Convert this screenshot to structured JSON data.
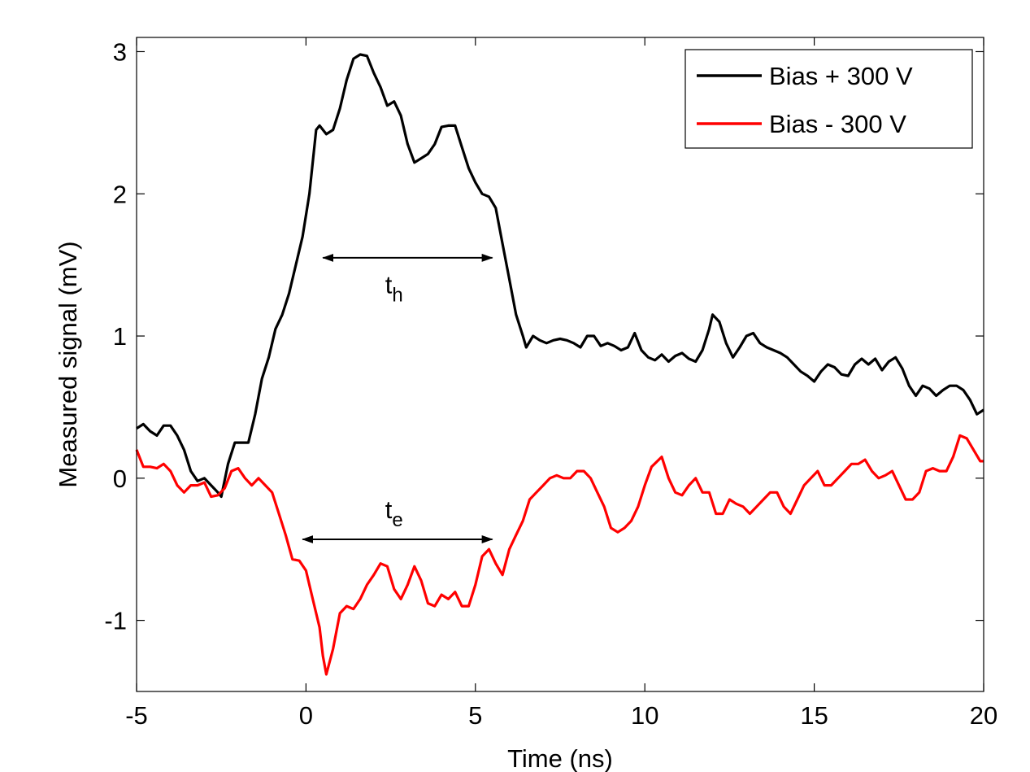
{
  "chart_data": {
    "type": "line",
    "xlabel": "Time (ns)",
    "ylabel": "Measured signal (mV)",
    "xlim": [
      -5,
      20
    ],
    "ylim": [
      -1.5,
      3.1
    ],
    "xticks": [
      -5,
      0,
      5,
      10,
      15,
      20
    ],
    "yticks": [
      -1,
      0,
      1,
      2,
      3
    ],
    "xtick_labels": [
      "-5",
      "0",
      "5",
      "10",
      "15",
      "20"
    ],
    "ytick_labels": [
      "-1",
      "0",
      "1",
      "2",
      "3"
    ],
    "grid": false,
    "legend": {
      "position": "top-right"
    },
    "series": [
      {
        "name": "Bias + 300 V",
        "color": "#000000",
        "points": [
          [
            -5.0,
            0.35
          ],
          [
            -4.8,
            0.38
          ],
          [
            -4.6,
            0.33
          ],
          [
            -4.4,
            0.3
          ],
          [
            -4.2,
            0.37
          ],
          [
            -4.0,
            0.37
          ],
          [
            -3.8,
            0.3
          ],
          [
            -3.6,
            0.2
          ],
          [
            -3.4,
            0.05
          ],
          [
            -3.2,
            -0.02
          ],
          [
            -3.0,
            0.0
          ],
          [
            -2.8,
            -0.05
          ],
          [
            -2.6,
            -0.1
          ],
          [
            -2.5,
            -0.13
          ],
          [
            -2.3,
            0.1
          ],
          [
            -2.1,
            0.25
          ],
          [
            -1.9,
            0.25
          ],
          [
            -1.7,
            0.25
          ],
          [
            -1.5,
            0.45
          ],
          [
            -1.3,
            0.7
          ],
          [
            -1.1,
            0.85
          ],
          [
            -0.9,
            1.05
          ],
          [
            -0.7,
            1.15
          ],
          [
            -0.5,
            1.3
          ],
          [
            -0.3,
            1.5
          ],
          [
            -0.1,
            1.7
          ],
          [
            0.1,
            2.0
          ],
          [
            0.3,
            2.45
          ],
          [
            0.4,
            2.48
          ],
          [
            0.6,
            2.42
          ],
          [
            0.8,
            2.45
          ],
          [
            1.0,
            2.6
          ],
          [
            1.2,
            2.8
          ],
          [
            1.4,
            2.95
          ],
          [
            1.6,
            2.98
          ],
          [
            1.8,
            2.97
          ],
          [
            2.0,
            2.85
          ],
          [
            2.2,
            2.75
          ],
          [
            2.4,
            2.62
          ],
          [
            2.6,
            2.65
          ],
          [
            2.8,
            2.55
          ],
          [
            3.0,
            2.35
          ],
          [
            3.2,
            2.22
          ],
          [
            3.4,
            2.25
          ],
          [
            3.6,
            2.28
          ],
          [
            3.8,
            2.35
          ],
          [
            4.0,
            2.47
          ],
          [
            4.2,
            2.48
          ],
          [
            4.4,
            2.48
          ],
          [
            4.6,
            2.33
          ],
          [
            4.8,
            2.18
          ],
          [
            5.0,
            2.08
          ],
          [
            5.2,
            2.0
          ],
          [
            5.4,
            1.98
          ],
          [
            5.6,
            1.9
          ],
          [
            5.8,
            1.65
          ],
          [
            6.0,
            1.4
          ],
          [
            6.2,
            1.15
          ],
          [
            6.4,
            1.0
          ],
          [
            6.5,
            0.92
          ],
          [
            6.7,
            1.0
          ],
          [
            6.9,
            0.97
          ],
          [
            7.1,
            0.95
          ],
          [
            7.3,
            0.97
          ],
          [
            7.5,
            0.98
          ],
          [
            7.7,
            0.97
          ],
          [
            7.9,
            0.95
          ],
          [
            8.1,
            0.92
          ],
          [
            8.3,
            1.0
          ],
          [
            8.5,
            1.0
          ],
          [
            8.7,
            0.93
          ],
          [
            8.9,
            0.95
          ],
          [
            9.1,
            0.93
          ],
          [
            9.3,
            0.9
          ],
          [
            9.5,
            0.92
          ],
          [
            9.7,
            1.02
          ],
          [
            9.9,
            0.9
          ],
          [
            10.1,
            0.85
          ],
          [
            10.3,
            0.83
          ],
          [
            10.5,
            0.87
          ],
          [
            10.7,
            0.82
          ],
          [
            10.9,
            0.86
          ],
          [
            11.1,
            0.88
          ],
          [
            11.3,
            0.84
          ],
          [
            11.5,
            0.82
          ],
          [
            11.7,
            0.9
          ],
          [
            11.9,
            1.05
          ],
          [
            12.0,
            1.15
          ],
          [
            12.2,
            1.1
          ],
          [
            12.4,
            0.95
          ],
          [
            12.6,
            0.85
          ],
          [
            12.8,
            0.92
          ],
          [
            13.0,
            1.0
          ],
          [
            13.2,
            1.02
          ],
          [
            13.4,
            0.95
          ],
          [
            13.6,
            0.92
          ],
          [
            13.8,
            0.9
          ],
          [
            14.0,
            0.88
          ],
          [
            14.2,
            0.85
          ],
          [
            14.4,
            0.8
          ],
          [
            14.6,
            0.75
          ],
          [
            14.8,
            0.72
          ],
          [
            15.0,
            0.68
          ],
          [
            15.2,
            0.75
          ],
          [
            15.4,
            0.8
          ],
          [
            15.6,
            0.78
          ],
          [
            15.8,
            0.73
          ],
          [
            16.0,
            0.72
          ],
          [
            16.2,
            0.8
          ],
          [
            16.4,
            0.84
          ],
          [
            16.6,
            0.8
          ],
          [
            16.8,
            0.84
          ],
          [
            17.0,
            0.76
          ],
          [
            17.2,
            0.82
          ],
          [
            17.4,
            0.85
          ],
          [
            17.6,
            0.77
          ],
          [
            17.8,
            0.65
          ],
          [
            18.0,
            0.58
          ],
          [
            18.2,
            0.65
          ],
          [
            18.4,
            0.63
          ],
          [
            18.6,
            0.58
          ],
          [
            18.8,
            0.62
          ],
          [
            19.0,
            0.65
          ],
          [
            19.2,
            0.65
          ],
          [
            19.4,
            0.62
          ],
          [
            19.6,
            0.55
          ],
          [
            19.8,
            0.45
          ],
          [
            20.0,
            0.48
          ]
        ]
      },
      {
        "name": "Bias - 300 V",
        "color": "#ff0000",
        "points": [
          [
            -5.0,
            0.2
          ],
          [
            -4.8,
            0.08
          ],
          [
            -4.6,
            0.08
          ],
          [
            -4.4,
            0.07
          ],
          [
            -4.2,
            0.1
          ],
          [
            -4.0,
            0.05
          ],
          [
            -3.8,
            -0.05
          ],
          [
            -3.6,
            -0.1
          ],
          [
            -3.4,
            -0.05
          ],
          [
            -3.2,
            -0.05
          ],
          [
            -3.0,
            -0.03
          ],
          [
            -2.8,
            -0.13
          ],
          [
            -2.6,
            -0.12
          ],
          [
            -2.4,
            -0.07
          ],
          [
            -2.2,
            0.05
          ],
          [
            -2.0,
            0.07
          ],
          [
            -1.8,
            0.0
          ],
          [
            -1.6,
            -0.05
          ],
          [
            -1.4,
            0.0
          ],
          [
            -1.2,
            -0.05
          ],
          [
            -1.0,
            -0.1
          ],
          [
            -0.8,
            -0.25
          ],
          [
            -0.6,
            -0.4
          ],
          [
            -0.4,
            -0.57
          ],
          [
            -0.2,
            -0.58
          ],
          [
            0.0,
            -0.65
          ],
          [
            0.2,
            -0.85
          ],
          [
            0.4,
            -1.05
          ],
          [
            0.5,
            -1.25
          ],
          [
            0.6,
            -1.38
          ],
          [
            0.8,
            -1.2
          ],
          [
            1.0,
            -0.95
          ],
          [
            1.2,
            -0.9
          ],
          [
            1.4,
            -0.92
          ],
          [
            1.6,
            -0.85
          ],
          [
            1.8,
            -0.75
          ],
          [
            2.0,
            -0.68
          ],
          [
            2.2,
            -0.6
          ],
          [
            2.4,
            -0.62
          ],
          [
            2.6,
            -0.78
          ],
          [
            2.8,
            -0.85
          ],
          [
            3.0,
            -0.75
          ],
          [
            3.2,
            -0.62
          ],
          [
            3.4,
            -0.72
          ],
          [
            3.6,
            -0.88
          ],
          [
            3.8,
            -0.9
          ],
          [
            4.0,
            -0.82
          ],
          [
            4.2,
            -0.85
          ],
          [
            4.4,
            -0.8
          ],
          [
            4.6,
            -0.9
          ],
          [
            4.8,
            -0.9
          ],
          [
            5.0,
            -0.75
          ],
          [
            5.2,
            -0.55
          ],
          [
            5.4,
            -0.5
          ],
          [
            5.6,
            -0.6
          ],
          [
            5.8,
            -0.68
          ],
          [
            6.0,
            -0.5
          ],
          [
            6.2,
            -0.4
          ],
          [
            6.4,
            -0.3
          ],
          [
            6.6,
            -0.15
          ],
          [
            6.8,
            -0.1
          ],
          [
            7.0,
            -0.05
          ],
          [
            7.2,
            0.0
          ],
          [
            7.4,
            0.02
          ],
          [
            7.6,
            0.0
          ],
          [
            7.8,
            0.0
          ],
          [
            8.0,
            0.05
          ],
          [
            8.2,
            0.05
          ],
          [
            8.4,
            0.0
          ],
          [
            8.6,
            -0.1
          ],
          [
            8.8,
            -0.2
          ],
          [
            9.0,
            -0.35
          ],
          [
            9.2,
            -0.38
          ],
          [
            9.4,
            -0.35
          ],
          [
            9.6,
            -0.3
          ],
          [
            9.8,
            -0.2
          ],
          [
            10.0,
            -0.05
          ],
          [
            10.2,
            0.08
          ],
          [
            10.5,
            0.15
          ],
          [
            10.7,
            0.0
          ],
          [
            10.9,
            -0.1
          ],
          [
            11.1,
            -0.12
          ],
          [
            11.3,
            -0.05
          ],
          [
            11.5,
            0.0
          ],
          [
            11.7,
            -0.1
          ],
          [
            11.9,
            -0.1
          ],
          [
            12.1,
            -0.25
          ],
          [
            12.3,
            -0.25
          ],
          [
            12.5,
            -0.15
          ],
          [
            12.7,
            -0.18
          ],
          [
            12.9,
            -0.2
          ],
          [
            13.1,
            -0.25
          ],
          [
            13.3,
            -0.2
          ],
          [
            13.5,
            -0.15
          ],
          [
            13.7,
            -0.1
          ],
          [
            13.9,
            -0.1
          ],
          [
            14.1,
            -0.2
          ],
          [
            14.3,
            -0.25
          ],
          [
            14.5,
            -0.15
          ],
          [
            14.7,
            -0.05
          ],
          [
            14.9,
            0.0
          ],
          [
            15.1,
            0.05
          ],
          [
            15.3,
            -0.05
          ],
          [
            15.5,
            -0.05
          ],
          [
            15.7,
            0.0
          ],
          [
            15.9,
            0.05
          ],
          [
            16.1,
            0.1
          ],
          [
            16.3,
            0.1
          ],
          [
            16.5,
            0.13
          ],
          [
            16.7,
            0.05
          ],
          [
            16.9,
            0.0
          ],
          [
            17.1,
            0.02
          ],
          [
            17.3,
            0.05
          ],
          [
            17.5,
            -0.05
          ],
          [
            17.7,
            -0.15
          ],
          [
            17.9,
            -0.15
          ],
          [
            18.1,
            -0.1
          ],
          [
            18.3,
            0.05
          ],
          [
            18.5,
            0.07
          ],
          [
            18.7,
            0.05
          ],
          [
            18.9,
            0.05
          ],
          [
            19.1,
            0.15
          ],
          [
            19.3,
            0.3
          ],
          [
            19.5,
            0.28
          ],
          [
            19.7,
            0.2
          ],
          [
            19.9,
            0.12
          ],
          [
            20.0,
            0.12
          ]
        ]
      }
    ],
    "annotations": [
      {
        "text": "t",
        "subscript": "h",
        "x": 2.6,
        "y": 1.3,
        "arrow_from": 0.5,
        "arrow_to": 5.5,
        "arrow_y": 1.55
      },
      {
        "text": "t",
        "subscript": "e",
        "x": 2.6,
        "y": -0.28,
        "arrow_from": -0.1,
        "arrow_to": 5.5,
        "arrow_y": -0.43
      }
    ]
  }
}
